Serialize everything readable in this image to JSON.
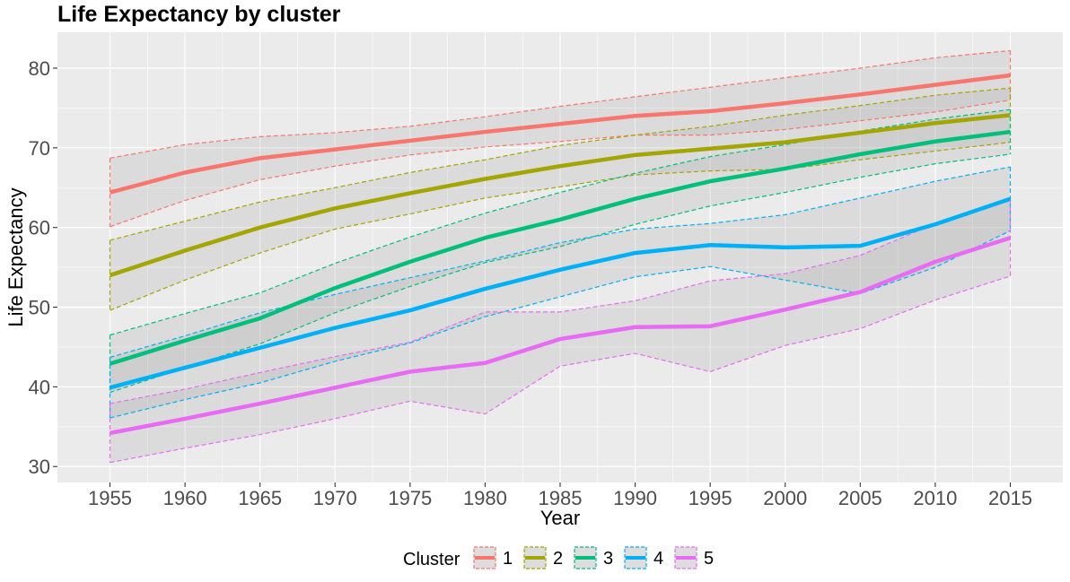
{
  "chart_data": {
    "type": "line",
    "title": "Life Expectancy by cluster",
    "xlabel": "Year",
    "ylabel": "Life Expectancy",
    "x": [
      1955,
      1960,
      1965,
      1970,
      1975,
      1980,
      1985,
      1990,
      1995,
      2000,
      2005,
      2010,
      2015
    ],
    "xlim": [
      1951.5,
      2018.5
    ],
    "ylim": [
      28,
      84.5
    ],
    "x_ticks": [
      1955,
      1960,
      1965,
      1970,
      1975,
      1980,
      1985,
      1990,
      1995,
      2000,
      2005,
      2010,
      2015
    ],
    "y_ticks": [
      30,
      40,
      50,
      60,
      70,
      80
    ],
    "grid": true,
    "legend": {
      "title": "Cluster",
      "placement": "bottom"
    },
    "series": [
      {
        "name": "1",
        "color": "#F8766D",
        "values": [
          64.4,
          66.9,
          68.7,
          69.8,
          70.9,
          72.0,
          73.0,
          74.0,
          74.6,
          75.6,
          76.7,
          77.9,
          79.1
        ],
        "upper": [
          68.7,
          70.4,
          71.4,
          71.9,
          72.7,
          73.9,
          75.2,
          76.4,
          77.6,
          78.8,
          80.0,
          81.3,
          82.2
        ],
        "lower": [
          60.1,
          63.4,
          66.0,
          67.7,
          69.1,
          70.1,
          70.8,
          71.6,
          71.6,
          72.3,
          73.4,
          74.5,
          76.0
        ]
      },
      {
        "name": "2",
        "color": "#A3A500",
        "values": [
          54.0,
          57.1,
          60.0,
          62.4,
          64.3,
          66.1,
          67.7,
          69.1,
          69.9,
          70.7,
          71.9,
          73.1,
          74.1
        ],
        "upper": [
          58.4,
          60.8,
          63.2,
          65.0,
          66.9,
          68.5,
          70.3,
          71.6,
          72.7,
          74.1,
          75.3,
          76.6,
          77.5
        ],
        "lower": [
          49.6,
          53.4,
          56.8,
          59.8,
          61.7,
          63.7,
          65.1,
          66.6,
          67.1,
          67.3,
          68.5,
          69.6,
          70.7
        ]
      },
      {
        "name": "3",
        "color": "#00BF7D",
        "values": [
          42.9,
          45.8,
          48.6,
          52.4,
          55.7,
          58.7,
          61.0,
          63.6,
          65.8,
          67.4,
          69.2,
          70.8,
          72.0
        ],
        "upper": [
          46.5,
          49.2,
          51.8,
          55.5,
          58.8,
          61.8,
          64.4,
          66.8,
          68.9,
          70.4,
          72.1,
          73.6,
          74.8
        ],
        "lower": [
          39.3,
          42.4,
          45.4,
          49.3,
          52.6,
          55.6,
          57.6,
          60.4,
          62.7,
          64.4,
          66.3,
          68.0,
          69.2
        ]
      },
      {
        "name": "4",
        "color": "#00B0F6",
        "values": [
          39.9,
          42.4,
          44.9,
          47.4,
          49.6,
          52.3,
          54.7,
          56.8,
          57.8,
          57.5,
          57.7,
          60.4,
          63.6
        ],
        "upper": [
          43.7,
          46.4,
          49.3,
          51.6,
          53.7,
          55.8,
          58.1,
          59.8,
          60.5,
          61.6,
          63.7,
          65.8,
          67.6
        ],
        "lower": [
          36.1,
          38.4,
          40.5,
          43.2,
          45.5,
          48.8,
          51.3,
          53.8,
          55.1,
          53.4,
          51.7,
          55.0,
          59.6
        ]
      },
      {
        "name": "5",
        "color": "#E76BF3",
        "values": [
          34.2,
          36.0,
          37.9,
          39.9,
          41.9,
          43.0,
          46.0,
          47.5,
          47.6,
          49.7,
          51.9,
          55.7,
          58.7
        ],
        "upper": [
          37.9,
          39.7,
          41.8,
          43.8,
          45.6,
          49.4,
          49.4,
          50.8,
          53.3,
          54.2,
          56.5,
          60.5,
          63.5
        ],
        "lower": [
          30.5,
          32.3,
          34.0,
          36.0,
          38.2,
          36.6,
          42.6,
          44.2,
          41.9,
          45.2,
          47.3,
          50.9,
          53.9
        ]
      }
    ]
  }
}
